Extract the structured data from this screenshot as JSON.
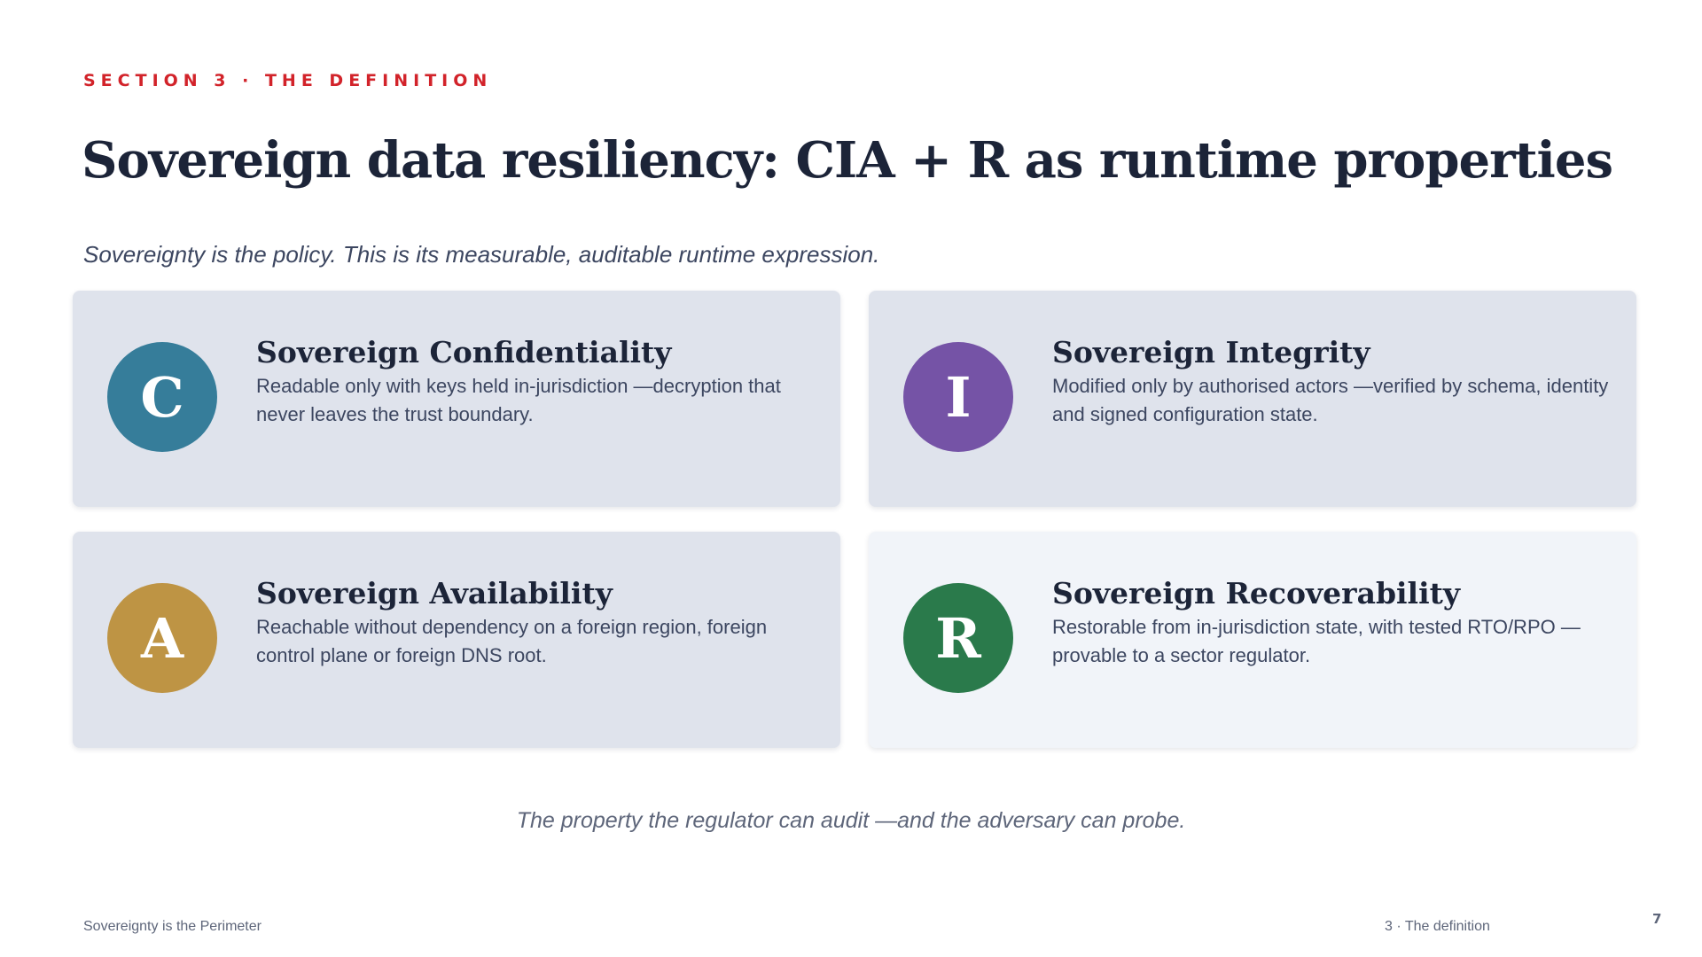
{
  "header": {
    "section_label": "SECTION 3 · THE DEFINITION",
    "title": "Sovereign data resiliency: CIA + R as runtime properties",
    "subtitle": "Sovereignty is the policy. This is its measurable, auditable runtime expression."
  },
  "cards": [
    {
      "letter": "C",
      "title": "Sovereign Confidentiality",
      "description": "Readable only with keys held in-jurisdiction —decryption that never leaves the trust boundary.",
      "badge_color": "#367d9a",
      "card_background": "#dfe3ec"
    },
    {
      "letter": "I",
      "title": "Sovereign Integrity",
      "description": "Modified only by authorised actors —verified by schema, identity and signed configuration state.",
      "badge_color": "#7553a6",
      "card_background": "#dfe3ec"
    },
    {
      "letter": "A",
      "title": "Sovereign Availability",
      "description": "Reachable without dependency on a foreign region, foreign control plane or foreign DNS root.",
      "badge_color": "#be9444",
      "card_background": "#dfe3ec"
    },
    {
      "letter": "R",
      "title": "Sovereign Recoverability",
      "description": "Restorable from in-jurisdiction state, with tested RTO/RPO —provable to a sector regulator.",
      "badge_color": "#2a7a4b",
      "card_background": "#f1f4f9"
    }
  ],
  "tagline": "The property the regulator can audit —and the adversary can probe.",
  "footer": {
    "left": "Sovereignty is the Perimeter",
    "right": "3 · The definition",
    "page_number": "7"
  },
  "colors": {
    "accent": "#d2232a",
    "title": "#1c2438",
    "body_text": "#3c4660",
    "muted_text": "#5e667a"
  }
}
